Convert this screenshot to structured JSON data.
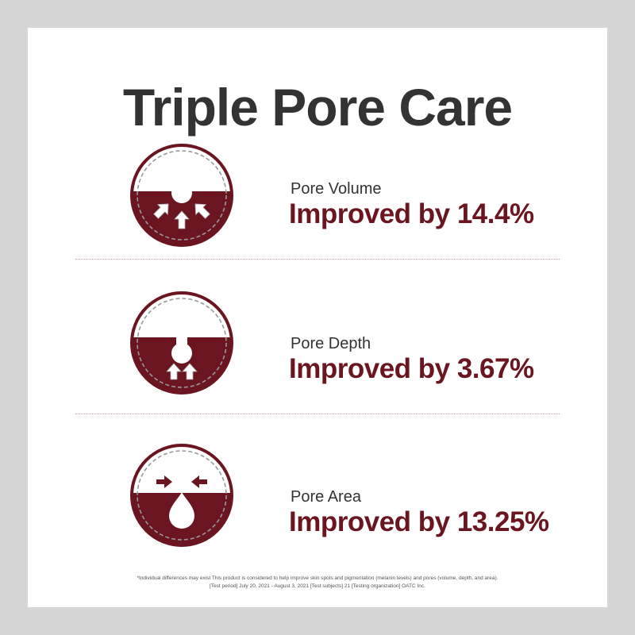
{
  "title": "Triple Pore Care",
  "items": [
    {
      "label": "Pore Volume",
      "value": "Improved by 14.4%",
      "icon": "pore-volume-icon"
    },
    {
      "label": "Pore Depth",
      "value": "Improved by 3.67%",
      "icon": "pore-depth-icon"
    },
    {
      "label": "Pore Area",
      "value": "Improved by 13.25%",
      "icon": "pore-area-icon"
    }
  ],
  "footnote": {
    "line1": "*Individual differences may exist This product is considered to help improve skin spots and pigmentation (melanin levels) and pores (volume, depth, and area).",
    "line2": "[Test period] July 20, 2021 - August 3, 2021 [Test subjects] 21 [Testing organization] OATC Inc."
  },
  "colors": {
    "accent": "#6b1520",
    "title": "#333333",
    "background": "#d6d6d6"
  }
}
